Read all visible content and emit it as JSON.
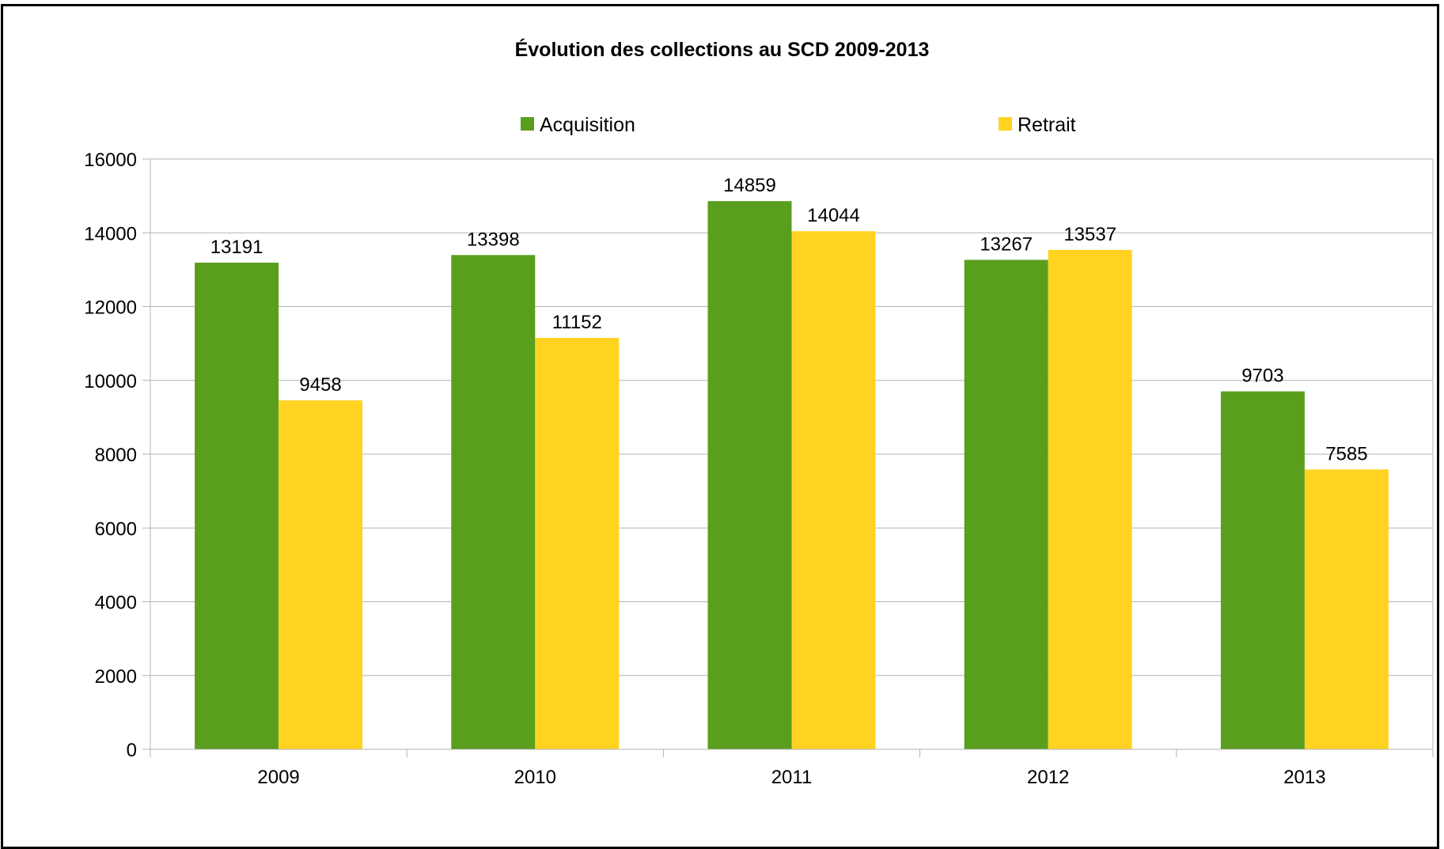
{
  "chart_data": {
    "type": "bar",
    "title": "Évolution des collections au SCD 2009-2013",
    "categories": [
      "2009",
      "2010",
      "2011",
      "2012",
      "2013"
    ],
    "series": [
      {
        "name": "Acquisition",
        "color": "#5a9e1e",
        "values": [
          13191,
          13398,
          14859,
          13267,
          9703
        ]
      },
      {
        "name": "Retrait",
        "color": "#ffd320",
        "values": [
          9458,
          11152,
          14044,
          13537,
          7585
        ]
      }
    ],
    "ylim": [
      0,
      16000
    ],
    "yticks": [
      0,
      2000,
      4000,
      6000,
      8000,
      10000,
      12000,
      14000,
      16000
    ],
    "xlabel": "",
    "ylabel": "",
    "grid": true,
    "legend_position": "top",
    "data_labels": true
  }
}
